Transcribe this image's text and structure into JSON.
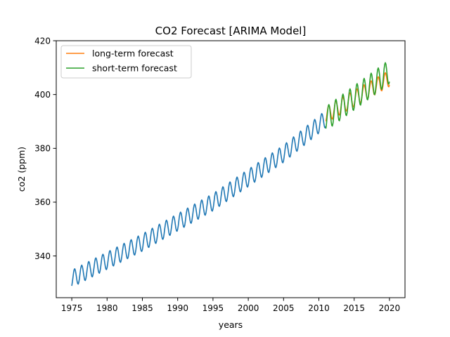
{
  "chart_data": {
    "type": "line",
    "title": "CO2 Forecast [ARIMA Model]",
    "xlabel": "years",
    "ylabel": "co2 (ppm)",
    "xlim": [
      1972.8,
      2022.2
    ],
    "ylim": [
      324.5,
      420.0
    ],
    "xticks": [
      1975,
      1980,
      1985,
      1990,
      1995,
      2000,
      2005,
      2010,
      2015,
      2020
    ],
    "yticks": [
      340,
      360,
      380,
      400,
      420
    ],
    "grid": false,
    "legend": "top-left",
    "legend_entries": [
      {
        "label": "long-term forecast",
        "color": "#ff7f0e"
      },
      {
        "label": "short-term forecast",
        "color": "#2ca02c"
      }
    ],
    "series": [
      {
        "role": "observed",
        "color": "#1f77b4",
        "start": 1975.0,
        "end": 2011.0,
        "step_years": 0.0833,
        "trend": [
          [
            1975,
            331.5
          ],
          [
            1985,
            345.0
          ],
          [
            1995,
            360.0
          ],
          [
            2005,
            378.0
          ],
          [
            2011,
            391.0
          ]
        ],
        "seasonal_amplitude": 3.2
      },
      {
        "name": "long-term forecast",
        "color": "#ff7f0e",
        "start": 2011.0,
        "end": 2020.0,
        "step_years": 0.0833,
        "trend": [
          [
            2011,
            392.5
          ],
          [
            2020,
            406.0
          ]
        ],
        "seasonal_amplitude": 3.0
      },
      {
        "name": "short-term forecast",
        "color": "#2ca02c",
        "start": 2011.0,
        "end": 2020.0,
        "step_years": 0.0833,
        "trend": [
          [
            2011,
            391.0
          ],
          [
            2020,
            408.5
          ]
        ],
        "seasonal_amplitude": 4.5
      }
    ]
  }
}
